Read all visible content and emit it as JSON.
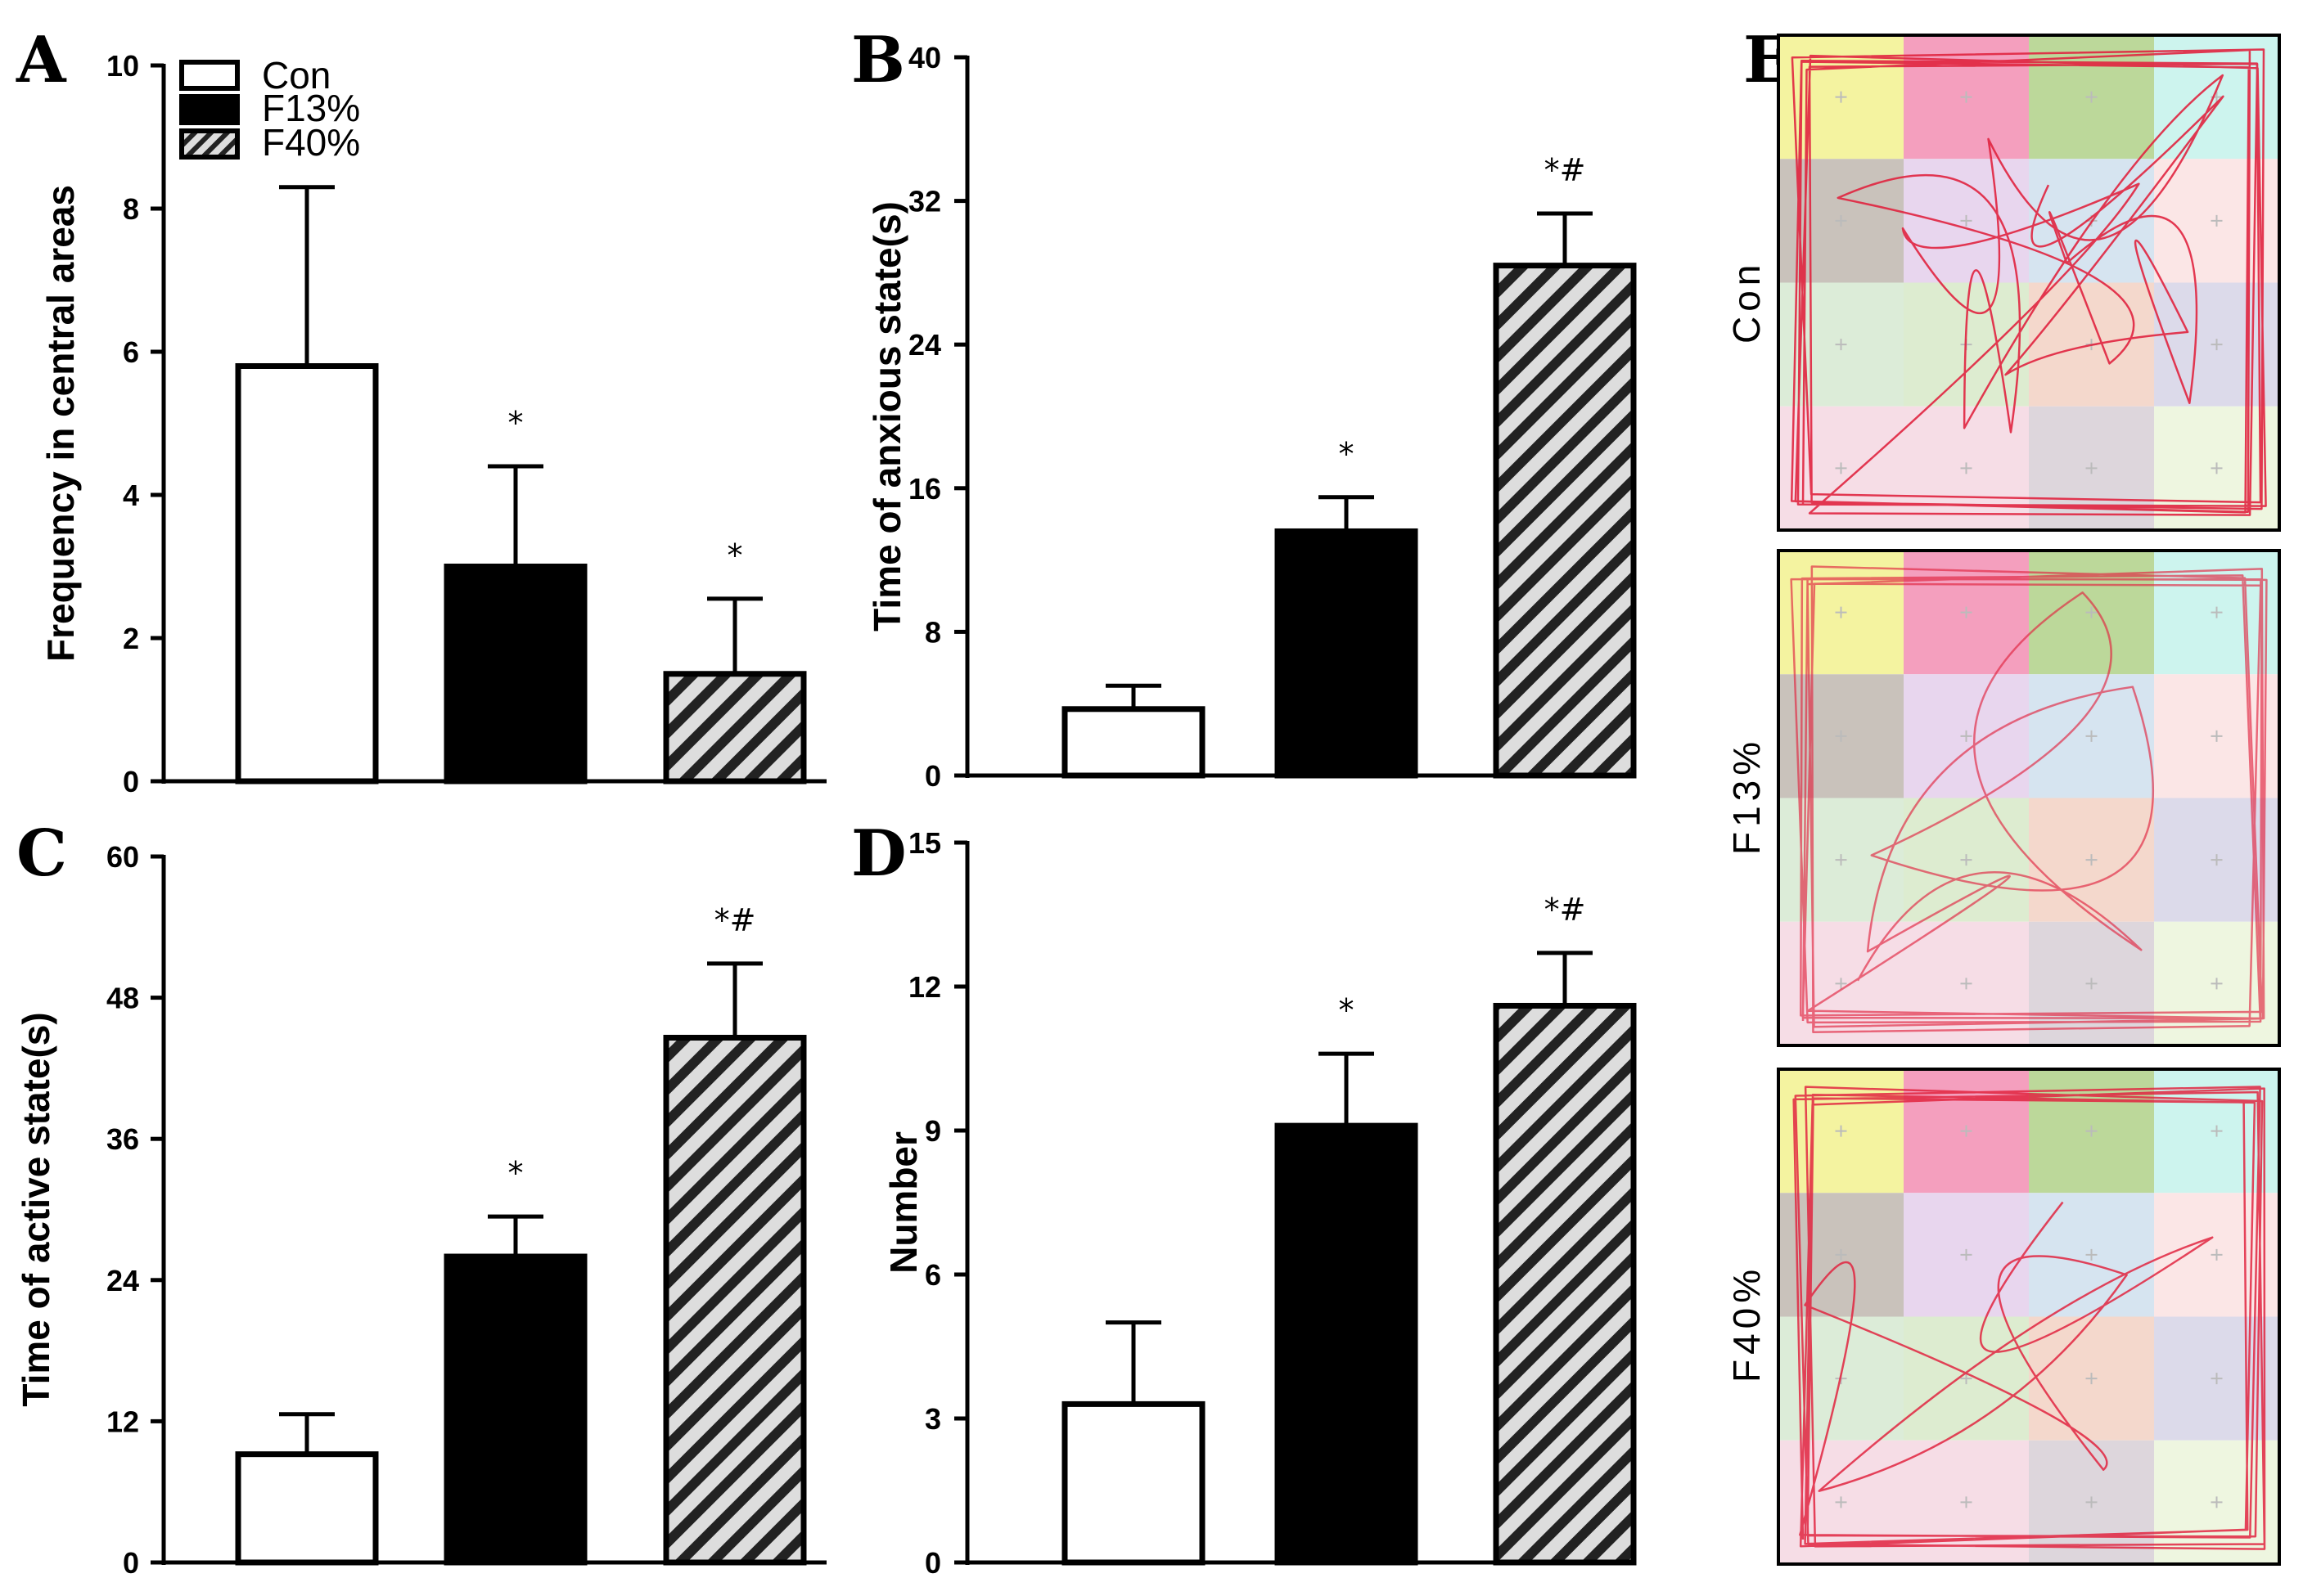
{
  "figure": {
    "panel_letters": [
      "A",
      "B",
      "C",
      "D",
      "E"
    ],
    "legend": [
      {
        "label": "Con",
        "fill": "open"
      },
      {
        "label": "F13%",
        "fill": "solid"
      },
      {
        "label": "F40%",
        "fill": "hatched"
      }
    ],
    "maze_labels": [
      "Con",
      "F13%",
      "F40%"
    ],
    "maze_grid_colors": [
      [
        "#f4f3a0",
        "#f49fbe",
        "#bcd89a",
        "#cdf4ee"
      ],
      [
        "#c9c2bb",
        "#e8d6ee",
        "#d6e4f0",
        "#fbe6e6"
      ],
      [
        "#dcecd8",
        "#ddecd0",
        "#f4d8cc",
        "#dcdaea"
      ],
      [
        "#f6dde6",
        "#f6dde6",
        "#ddd6dc",
        "#eef6e0"
      ]
    ],
    "colors": {
      "trace": "#e0243f",
      "hatch": "#222222",
      "hatch_bg": "#dddddd"
    }
  },
  "chart_data": [
    {
      "type": "bar",
      "panel": "A",
      "ylabel": "Frequency in central areas",
      "ylim": [
        0,
        10
      ],
      "yticks": [
        0,
        2,
        4,
        6,
        8,
        10
      ],
      "categories": [
        "Con",
        "F13%",
        "F40%"
      ],
      "values": [
        5.8,
        3.0,
        1.5
      ],
      "errors": [
        2.5,
        1.4,
        1.05
      ],
      "significance": [
        "",
        "*",
        "*"
      ]
    },
    {
      "type": "bar",
      "panel": "B",
      "ylabel": "Time of anxious state(s)",
      "ylim": [
        0,
        40
      ],
      "yticks": [
        0,
        8,
        16,
        24,
        32,
        40
      ],
      "categories": [
        "Con",
        "F13%",
        "F40%"
      ],
      "values": [
        3.7,
        13.6,
        28.4
      ],
      "errors": [
        1.3,
        1.9,
        2.9
      ],
      "significance": [
        "",
        "*",
        "*#"
      ]
    },
    {
      "type": "bar",
      "panel": "C",
      "ylabel": "Time of active state(s)",
      "ylim": [
        0,
        60
      ],
      "yticks": [
        0,
        12,
        24,
        36,
        48,
        60
      ],
      "categories": [
        "Con",
        "F13%",
        "F40%"
      ],
      "values": [
        9.2,
        26.0,
        44.6
      ],
      "errors": [
        3.4,
        3.4,
        6.3
      ],
      "significance": [
        "",
        "*",
        "*#"
      ]
    },
    {
      "type": "bar",
      "panel": "D",
      "ylabel": "Number",
      "ylim": [
        0,
        15
      ],
      "yticks": [
        0,
        3,
        6,
        9,
        12,
        15
      ],
      "categories": [
        "Con",
        "F13%",
        "F40%"
      ],
      "values": [
        3.3,
        9.1,
        11.6
      ],
      "errors": [
        1.7,
        1.5,
        1.1
      ],
      "significance": [
        "",
        "*",
        "*#"
      ]
    }
  ]
}
